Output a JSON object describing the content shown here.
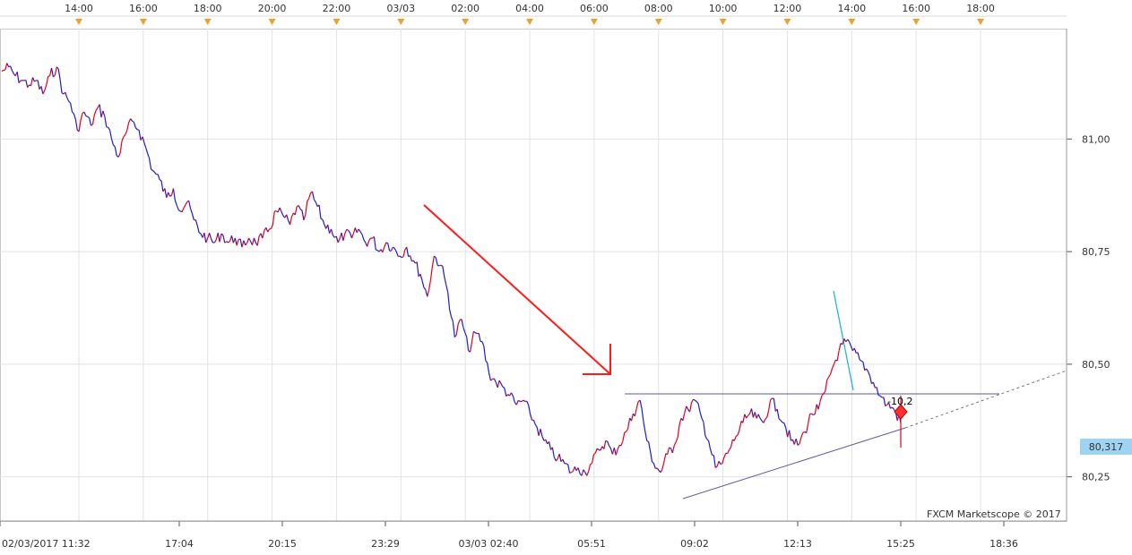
{
  "colors": {
    "up": "#e3001b",
    "down": "#1c1ccf",
    "arrow": "#ff1a1a",
    "cyan": "#20b8d8",
    "trend": "#5a5a9a",
    "grid": "#e2e2e2",
    "marker": "#f0a030",
    "price_box": "#9ed4f2"
  },
  "chart_data": {
    "type": "line",
    "instrument_note": "",
    "credit": "FXCM Marketscope © 2017",
    "top_time_labels": [
      "14:00",
      "16:00",
      "18:00",
      "20:00",
      "22:00",
      "03/03",
      "02:00",
      "04:00",
      "06:00",
      "08:00",
      "10:00",
      "12:00",
      "14:00",
      "16:00",
      "18:00"
    ],
    "bottom_time_labels": [
      "02/03/2017 11:32",
      "17:04",
      "20:15",
      "23:29",
      "03/03 02:40",
      "05:51",
      "09:02",
      "12:13",
      "15:25",
      "18:36"
    ],
    "y_ticks": [
      "81,00",
      "80,75",
      "80,50",
      "80,25"
    ],
    "y_values": [
      81.0,
      80.75,
      80.5,
      80.25
    ],
    "ylim": [
      80.152,
      81.245
    ],
    "current_price_label": "80,317",
    "current_price": 80.317,
    "position_label": "-10,2",
    "grid": true,
    "series": [
      {
        "values": [
          81.15,
          81.16,
          81.14,
          81.13,
          81.12,
          81.13,
          81.1,
          81.14,
          81.16,
          81.1,
          81.08,
          81.02,
          81.06,
          81.03,
          81.07,
          81.05,
          81.0,
          80.96,
          81.01,
          81.04,
          81.02,
          80.98,
          80.93,
          80.91,
          80.87,
          80.89,
          80.84,
          80.86,
          80.82,
          80.79,
          80.78,
          80.77,
          80.79,
          80.77,
          80.78,
          80.76,
          80.78,
          80.77,
          80.78,
          80.8,
          80.84,
          80.83,
          80.81,
          80.85,
          80.82,
          80.88,
          80.85,
          80.81,
          80.8,
          80.77,
          80.79,
          80.78,
          80.8,
          80.77,
          80.78,
          80.75,
          80.77,
          80.76,
          80.74,
          80.76,
          80.73,
          80.7,
          80.65,
          80.74,
          80.72,
          80.66,
          80.56,
          80.6,
          80.53,
          80.57,
          80.55,
          80.48,
          80.46,
          80.45,
          80.43,
          80.41,
          80.42,
          80.39,
          80.36,
          80.33,
          80.31,
          80.29,
          80.28,
          80.26,
          80.27,
          80.26,
          80.28,
          80.31,
          80.33,
          80.3,
          80.32,
          80.35,
          80.39,
          80.42,
          80.33,
          80.28,
          80.26,
          80.3,
          80.32,
          80.38,
          80.4,
          80.42,
          80.38,
          80.33,
          80.27,
          80.28,
          80.31,
          80.34,
          80.37,
          80.39,
          80.38,
          80.37,
          80.42,
          80.4,
          80.37,
          80.33,
          80.32,
          80.35,
          80.39,
          80.4,
          80.44,
          80.49,
          80.53,
          80.55,
          80.53,
          80.51,
          80.49,
          80.46,
          80.43,
          80.41,
          80.4,
          80.37
        ]
      }
    ]
  }
}
